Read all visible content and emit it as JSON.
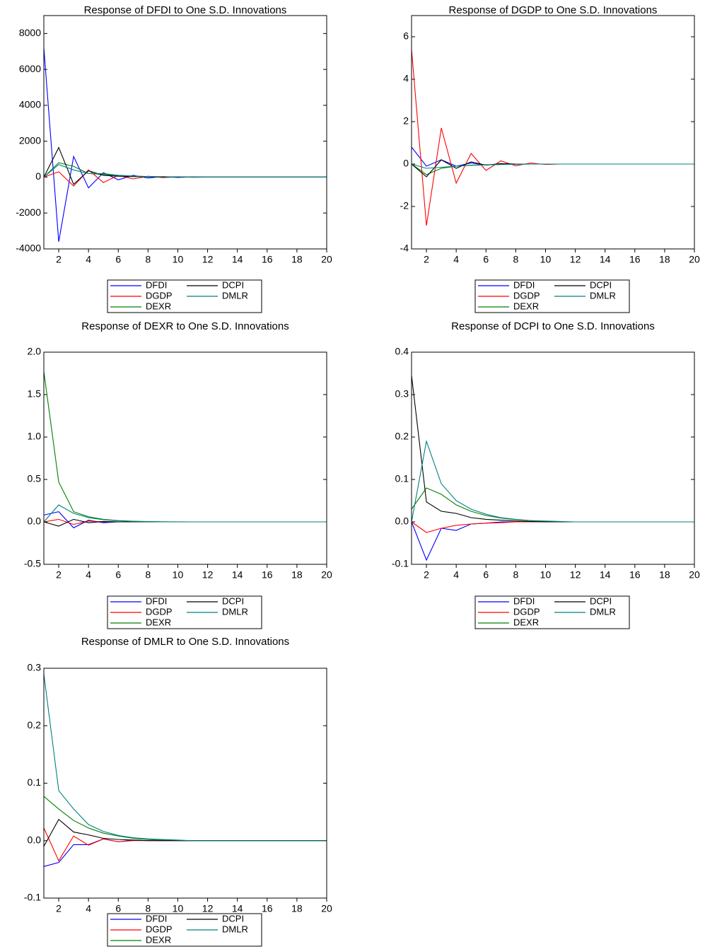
{
  "chart_data": [
    {
      "type": "line",
      "title": "Response of DFDI to One S.D. Innovations",
      "x": [
        1,
        2,
        3,
        4,
        5,
        6,
        7,
        8,
        9,
        10,
        11,
        12,
        13,
        14,
        15,
        16,
        17,
        18,
        19,
        20
      ],
      "xlim": [
        1,
        20
      ],
      "xticks": [
        2,
        4,
        6,
        8,
        10,
        12,
        14,
        16,
        18,
        20
      ],
      "ylim": [
        -4000,
        9000
      ],
      "yticks": [
        -4000,
        -2000,
        0,
        2000,
        4000,
        6000,
        8000
      ],
      "series": [
        {
          "name": "DFDI",
          "color": "#0000ff",
          "values": [
            7200,
            -3600,
            1150,
            -600,
            250,
            -150,
            100,
            -50,
            30,
            -20,
            10,
            0,
            0,
            0,
            0,
            0,
            0,
            0,
            0,
            0
          ]
        },
        {
          "name": "DGDP",
          "color": "#ff0000",
          "values": [
            0,
            300,
            -500,
            400,
            -300,
            100,
            -100,
            50,
            -30,
            20,
            -10,
            0,
            0,
            0,
            0,
            0,
            0,
            0,
            0,
            0
          ]
        },
        {
          "name": "DEXR",
          "color": "#008000",
          "values": [
            0,
            800,
            600,
            200,
            150,
            100,
            50,
            30,
            20,
            10,
            0,
            0,
            0,
            0,
            0,
            0,
            0,
            0,
            0,
            0
          ]
        },
        {
          "name": "DCPI",
          "color": "#000000",
          "values": [
            0,
            1650,
            -400,
            350,
            100,
            50,
            30,
            20,
            10,
            0,
            0,
            0,
            0,
            0,
            0,
            0,
            0,
            0,
            0,
            0
          ]
        },
        {
          "name": "DMLR",
          "color": "#008080",
          "values": [
            0,
            700,
            400,
            200,
            200,
            100,
            60,
            30,
            20,
            10,
            0,
            0,
            0,
            0,
            0,
            0,
            0,
            0,
            0,
            0
          ]
        }
      ]
    },
    {
      "type": "line",
      "title": "Response of DGDP to One S.D. Innovations",
      "x": [
        1,
        2,
        3,
        4,
        5,
        6,
        7,
        8,
        9,
        10,
        11,
        12,
        13,
        14,
        15,
        16,
        17,
        18,
        19,
        20
      ],
      "xlim": [
        1,
        20
      ],
      "xticks": [
        2,
        4,
        6,
        8,
        10,
        12,
        14,
        16,
        18,
        20
      ],
      "ylim": [
        -4,
        7
      ],
      "yticks": [
        -4,
        -2,
        0,
        2,
        4,
        6
      ],
      "series": [
        {
          "name": "DFDI",
          "color": "#0000ff",
          "values": [
            0.8,
            -0.1,
            0.2,
            -0.1,
            0.05,
            -0.05,
            0.02,
            0,
            0,
            0,
            0,
            0,
            0,
            0,
            0,
            0,
            0,
            0,
            0,
            0
          ]
        },
        {
          "name": "DGDP",
          "color": "#ff0000",
          "values": [
            5.4,
            -2.9,
            1.7,
            -0.9,
            0.5,
            -0.3,
            0.15,
            -0.08,
            0.05,
            -0.02,
            0,
            0,
            0,
            0,
            0,
            0,
            0,
            0,
            0,
            0
          ]
        },
        {
          "name": "DEXR",
          "color": "#008000",
          "values": [
            0,
            -0.5,
            -0.2,
            -0.1,
            -0.05,
            -0.03,
            -0.02,
            -0.01,
            0,
            0,
            0,
            0,
            0,
            0,
            0,
            0,
            0,
            0,
            0,
            0
          ]
        },
        {
          "name": "DCPI",
          "color": "#000000",
          "values": [
            0,
            -0.6,
            0.2,
            -0.2,
            0.1,
            -0.05,
            0.02,
            0,
            0,
            0,
            0,
            0,
            0,
            0,
            0,
            0,
            0,
            0,
            0,
            0
          ]
        },
        {
          "name": "DMLR",
          "color": "#008080",
          "values": [
            0,
            -0.2,
            -0.15,
            -0.1,
            -0.06,
            -0.04,
            -0.02,
            -0.01,
            0,
            0,
            0,
            0,
            0,
            0,
            0,
            0,
            0,
            0,
            0,
            0
          ]
        }
      ]
    },
    {
      "type": "line",
      "title": "Response of DEXR to One S.D. Innovations",
      "x": [
        1,
        2,
        3,
        4,
        5,
        6,
        7,
        8,
        9,
        10,
        11,
        12,
        13,
        14,
        15,
        16,
        17,
        18,
        19,
        20
      ],
      "xlim": [
        1,
        20
      ],
      "xticks": [
        2,
        4,
        6,
        8,
        10,
        12,
        14,
        16,
        18,
        20
      ],
      "ylim": [
        -0.5,
        2
      ],
      "yticks": [
        -0.5,
        {
          "value": 0,
          "label": "0.0"
        },
        0.5,
        {
          "value": 1,
          "label": "1.0"
        },
        1.5,
        {
          "value": 2,
          "label": "2.0"
        }
      ],
      "series": [
        {
          "name": "DFDI",
          "color": "#0000ff",
          "values": [
            0.08,
            0.12,
            -0.07,
            0.02,
            -0.01,
            0,
            0,
            0,
            0,
            0,
            0,
            0,
            0,
            0,
            0,
            0,
            0,
            0,
            0,
            0
          ]
        },
        {
          "name": "DGDP",
          "color": "#ff0000",
          "values": [
            0,
            0.03,
            -0.03,
            0.01,
            0,
            0,
            0,
            0,
            0,
            0,
            0,
            0,
            0,
            0,
            0,
            0,
            0,
            0,
            0,
            0
          ]
        },
        {
          "name": "DEXR",
          "color": "#008000",
          "values": [
            1.77,
            0.47,
            0.12,
            0.06,
            0.03,
            0.015,
            0.008,
            0.004,
            0.002,
            0.001,
            0,
            0,
            0,
            0,
            0,
            0,
            0,
            0,
            0,
            0
          ]
        },
        {
          "name": "DCPI",
          "color": "#000000",
          "values": [
            0,
            -0.05,
            0.03,
            -0.01,
            0.005,
            0,
            0,
            0,
            0,
            0,
            0,
            0,
            0,
            0,
            0,
            0,
            0,
            0,
            0,
            0
          ]
        },
        {
          "name": "DMLR",
          "color": "#008080",
          "values": [
            0,
            0.2,
            0.1,
            0.05,
            0.025,
            0.012,
            0.006,
            0.003,
            0,
            0,
            0,
            0,
            0,
            0,
            0,
            0,
            0,
            0,
            0,
            0
          ]
        }
      ]
    },
    {
      "type": "line",
      "title": "Response of DCPI to One S.D. Innovations",
      "x": [
        1,
        2,
        3,
        4,
        5,
        6,
        7,
        8,
        9,
        10,
        11,
        12,
        13,
        14,
        15,
        16,
        17,
        18,
        19,
        20
      ],
      "xlim": [
        1,
        20
      ],
      "xticks": [
        2,
        4,
        6,
        8,
        10,
        12,
        14,
        16,
        18,
        20
      ],
      "ylim": [
        -0.1,
        0.4
      ],
      "yticks": [
        -0.1,
        {
          "value": 0,
          "label": "0.0"
        },
        0.1,
        0.2,
        0.3,
        0.4
      ],
      "series": [
        {
          "name": "DFDI",
          "color": "#0000ff",
          "values": [
            0,
            -0.09,
            -0.015,
            -0.02,
            -0.005,
            -0.003,
            0,
            0,
            0,
            0,
            0,
            0,
            0,
            0,
            0,
            0,
            0,
            0,
            0,
            0
          ]
        },
        {
          "name": "DGDP",
          "color": "#ff0000",
          "values": [
            0,
            -0.025,
            -0.015,
            -0.008,
            -0.005,
            -0.003,
            -0.002,
            0,
            0,
            0,
            0,
            0,
            0,
            0,
            0,
            0,
            0,
            0,
            0,
            0
          ]
        },
        {
          "name": "DEXR",
          "color": "#008000",
          "values": [
            0.03,
            0.08,
            0.065,
            0.04,
            0.025,
            0.015,
            0.009,
            0.005,
            0.003,
            0.001,
            0,
            0,
            0,
            0,
            0,
            0,
            0,
            0,
            0,
            0
          ]
        },
        {
          "name": "DCPI",
          "color": "#000000",
          "values": [
            0.345,
            0.047,
            0.025,
            0.02,
            0.01,
            0.006,
            0.004,
            0.002,
            0.001,
            0,
            0,
            0,
            0,
            0,
            0,
            0,
            0,
            0,
            0,
            0
          ]
        },
        {
          "name": "DMLR",
          "color": "#008080",
          "values": [
            0,
            0.19,
            0.09,
            0.05,
            0.03,
            0.018,
            0.01,
            0.006,
            0.003,
            0.002,
            0.001,
            0,
            0,
            0,
            0,
            0,
            0,
            0,
            0,
            0
          ]
        }
      ]
    },
    {
      "type": "line",
      "title": "Response of DMLR to One S.D. Innovations",
      "x": [
        1,
        2,
        3,
        4,
        5,
        6,
        7,
        8,
        9,
        10,
        11,
        12,
        13,
        14,
        15,
        16,
        17,
        18,
        19,
        20
      ],
      "xlim": [
        1,
        20
      ],
      "xticks": [
        2,
        4,
        6,
        8,
        10,
        12,
        14,
        16,
        18,
        20
      ],
      "ylim": [
        -0.1,
        0.3
      ],
      "yticks": [
        -0.1,
        {
          "value": 0,
          "label": "0.0"
        },
        0.1,
        0.2,
        0.3
      ],
      "series": [
        {
          "name": "DFDI",
          "color": "#0000ff",
          "values": [
            -0.045,
            -0.038,
            -0.007,
            -0.007,
            0.003,
            -0.002,
            0.001,
            0,
            0,
            0,
            0,
            0,
            0,
            0,
            0,
            0,
            0,
            0,
            0,
            0
          ]
        },
        {
          "name": "DGDP",
          "color": "#ff0000",
          "values": [
            0.022,
            -0.035,
            0.008,
            -0.008,
            0.003,
            -0.002,
            0,
            0,
            0,
            0,
            0,
            0,
            0,
            0,
            0,
            0,
            0,
            0,
            0,
            0
          ]
        },
        {
          "name": "DEXR",
          "color": "#008000",
          "values": [
            0.077,
            0.055,
            0.035,
            0.022,
            0.013,
            0.008,
            0.004,
            0.002,
            0.001,
            0,
            0,
            0,
            0,
            0,
            0,
            0,
            0,
            0,
            0,
            0
          ]
        },
        {
          "name": "DCPI",
          "color": "#000000",
          "values": [
            -0.01,
            0.037,
            0.015,
            0.01,
            0.004,
            0.002,
            0.001,
            0,
            0,
            0,
            0,
            0,
            0,
            0,
            0,
            0,
            0,
            0,
            0,
            0
          ]
        },
        {
          "name": "DMLR",
          "color": "#008080",
          "values": [
            0.29,
            0.087,
            0.055,
            0.028,
            0.016,
            0.009,
            0.005,
            0.003,
            0.002,
            0.001,
            0,
            0,
            0,
            0,
            0,
            0,
            0,
            0,
            0,
            0
          ]
        }
      ]
    }
  ]
}
